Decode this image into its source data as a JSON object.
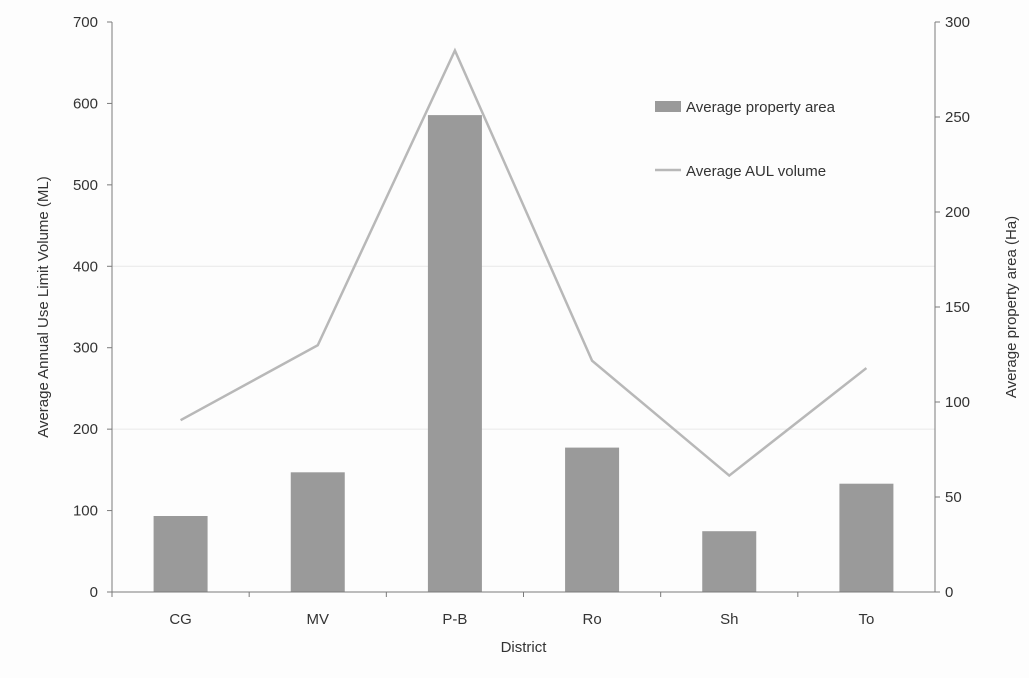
{
  "chart_data": {
    "type": "bar",
    "categories": [
      "CG",
      "MV",
      "P-B",
      "Ro",
      "Sh",
      "To"
    ],
    "series": [
      {
        "name": "Average property area",
        "type": "bar",
        "axis": "right",
        "values": [
          40,
          63,
          251,
          76,
          32,
          57
        ],
        "color": "#9a9a9a"
      },
      {
        "name": "Average AUL volume",
        "type": "line",
        "axis": "left",
        "values": [
          211,
          303,
          665,
          284,
          143,
          275
        ],
        "color": "#b8b8b8"
      }
    ],
    "xlabel": "District",
    "ylabel": "Average Annual Use Limit Volume (ML)",
    "y2label": "Average property area (Ha)",
    "ylim": [
      0,
      700
    ],
    "y2lim": [
      0,
      300
    ],
    "yticks": [
      0,
      100,
      200,
      300,
      400,
      500,
      600,
      700
    ],
    "y2ticks": [
      0,
      50,
      100,
      150,
      200,
      250,
      300
    ],
    "grid": false,
    "legend_position": "top-right"
  }
}
